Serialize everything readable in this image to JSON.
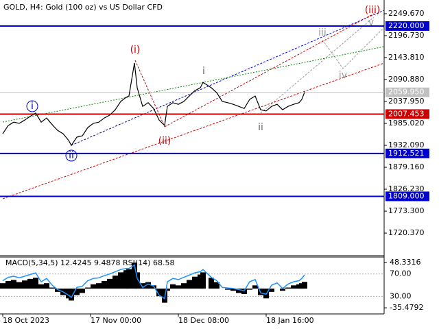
{
  "chart_data": {
    "type": "line",
    "title": "GOLD, H4:  Gold (100 oz) vs US Dollar CFD",
    "color": "#000000",
    "x": [
      0,
      2,
      4,
      6,
      8,
      10,
      12,
      14,
      16,
      18,
      20,
      22,
      24,
      25,
      27,
      29,
      31,
      33,
      35,
      37,
      39,
      41,
      43,
      45,
      46,
      48,
      49,
      51,
      53,
      55,
      57,
      59,
      60,
      62,
      64,
      66,
      68,
      70,
      72,
      73,
      76,
      78,
      80,
      82,
      84,
      86,
      88,
      90,
      92,
      94,
      96,
      98,
      100,
      102,
      104,
      106,
      108,
      109,
      110
    ],
    "values": [
      1960,
      1980,
      1988,
      1985,
      1993,
      2002,
      2010,
      1988,
      1998,
      1982,
      1968,
      1960,
      1944,
      1932,
      1952,
      1955,
      1975,
      1985,
      1988,
      1998,
      2005,
      2018,
      2038,
      2048,
      2051,
      2131,
      2071,
      2026,
      2035,
      2021,
      1993,
      1980,
      2026,
      2035,
      2031,
      2038,
      2051,
      2064,
      2071,
      2084,
      2071,
      2059,
      2038,
      2035,
      2031,
      2026,
      2021,
      2043,
      2051,
      2018,
      2015,
      2026,
      2031,
      2018,
      2026,
      2031,
      2035,
      2043,
      2059.95
    ],
    "xlim": [
      -1,
      139
    ],
    "xticks": [
      {
        "value": 0,
        "label": "18 Oct 2023"
      },
      {
        "value": 32,
        "label": "17 Nov 00:00"
      },
      {
        "value": 64,
        "label": "18 Dec 08:00"
      },
      {
        "value": 96,
        "label": "18 Jan 16:00"
      }
    ],
    "ylim": [
      1667.5,
      2282.75
    ],
    "yticks": [
      {
        "value": 2249.67,
        "label": "2249.670"
      },
      {
        "value": 2196.73,
        "label": "2196.730"
      },
      {
        "value": 2143.81,
        "label": "2143.810"
      },
      {
        "value": 2090.88,
        "label": "2090.880"
      },
      {
        "value": 2037.95,
        "label": "2037.950"
      },
      {
        "value": 1985.02,
        "label": "1985.020"
      },
      {
        "value": 1932.09,
        "label": "1932.090"
      },
      {
        "value": 1879.16,
        "label": "1879.160"
      },
      {
        "value": 1826.23,
        "label": "1826.230"
      },
      {
        "value": 1773.3,
        "label": "1773.300"
      },
      {
        "value": 1720.37,
        "label": "1720.370"
      }
    ],
    "levels": [
      {
        "value": 2220,
        "label": "2220.000",
        "color": "#0000cc"
      },
      {
        "value": 2059.95,
        "label": "2059.950",
        "color": "#c0c0c0"
      },
      {
        "value": 2007.453,
        "label": "2007.453",
        "color": "#cc0000"
      },
      {
        "value": 1912.521,
        "label": "1912.521",
        "color": "#0000cc"
      },
      {
        "value": 1809,
        "label": "1809.000",
        "color": "#0000cc"
      }
    ],
    "annotations": [
      {
        "text": "(iii)",
        "color": "#cc0000"
      },
      {
        "text": "(i)",
        "color": "#cc0000"
      },
      {
        "text": "(ii)",
        "color": "#cc0000"
      },
      {
        "text": "i",
        "color": "#666666"
      },
      {
        "text": "ii",
        "color": "#666666"
      },
      {
        "text": "iii",
        "color": "#999999"
      },
      {
        "text": "iv",
        "color": "#999999"
      },
      {
        "text": "v",
        "color": "#999999"
      },
      {
        "text": "i",
        "color": "#0000cc"
      },
      {
        "text": "ii",
        "color": "#0000cc"
      }
    ],
    "indicator": {
      "title": "MACD(5,34,5) 12.4245 9.4878 RSI(14) 68.58",
      "hist_color": "#000000",
      "rsi_color": "#1e90ff",
      "histogram": [
        10,
        14,
        16,
        12,
        15,
        18,
        20,
        8,
        10,
        2,
        -6,
        -12,
        -18,
        -22,
        -12,
        -8,
        2,
        8,
        10,
        14,
        18,
        24,
        30,
        34,
        36,
        48,
        30,
        10,
        12,
        6,
        -14,
        -26,
        -4,
        8,
        6,
        10,
        16,
        22,
        26,
        30,
        20,
        12,
        0,
        -2,
        -4,
        -8,
        -10,
        -2,
        6,
        -12,
        -18,
        -6,
        0,
        -4,
        2,
        6,
        8,
        10,
        12.4245
      ],
      "rsi": [
        58,
        64,
        66,
        63,
        66,
        69,
        72,
        56,
        62,
        50,
        42,
        38,
        32,
        28,
        46,
        48,
        58,
        62,
        63,
        67,
        70,
        74,
        78,
        80,
        80,
        86,
        62,
        46,
        52,
        48,
        32,
        26,
        56,
        62,
        60,
        64,
        68,
        72,
        74,
        78,
        64,
        58,
        46,
        45,
        44,
        42,
        40,
        56,
        60,
        36,
        34,
        50,
        54,
        44,
        52,
        56,
        58,
        62,
        68.58
      ],
      "ylim": [
        -46.74,
        58.34
      ],
      "yticks": [
        48.3316,
        -35.4792
      ],
      "y2lim": [
        -1.5,
        100.3
      ],
      "y2ticks": [
        {
          "value": 70,
          "label": "70.00"
        },
        {
          "value": 30,
          "label": "30.00"
        }
      ]
    }
  }
}
